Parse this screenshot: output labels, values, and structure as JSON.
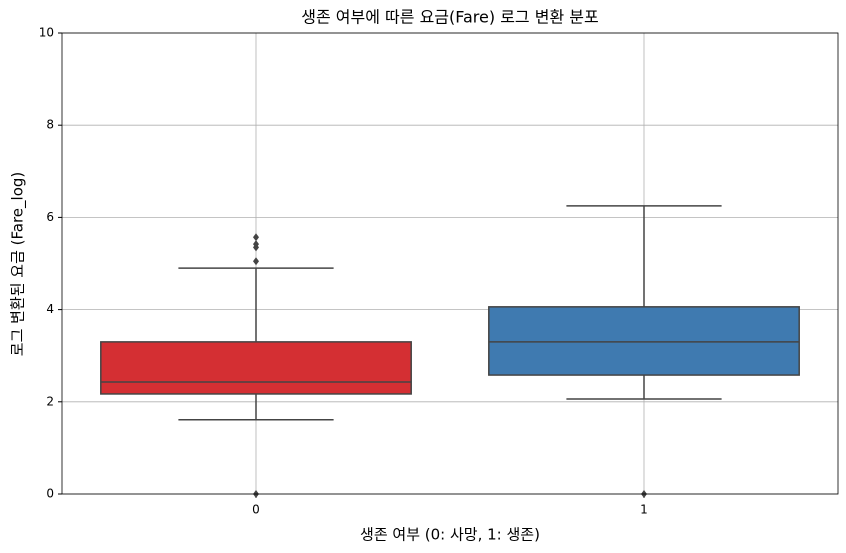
{
  "chart_data": {
    "type": "box",
    "title": "생존 여부에 따른 요금(Fare) 로그 변환 분포",
    "x_label": "생존 여부 (0: 사망, 1: 생존)",
    "y_label": "로그 변환된 요금 (Fare_log)",
    "categories": [
      "0",
      "1"
    ],
    "boxes": [
      {
        "color": "#d42f33",
        "low": 1.61,
        "q1": 2.17,
        "median": 2.43,
        "q3": 3.3,
        "high": 4.9,
        "outliers": [
          0,
          5.05,
          5.35,
          5.42,
          5.57
        ]
      },
      {
        "color": "#3f7ab0",
        "low": 2.06,
        "q1": 2.58,
        "median": 3.3,
        "q3": 4.06,
        "high": 6.25,
        "outliers": [
          0
        ]
      }
    ],
    "ylim": [
      0,
      10
    ],
    "yticks": [
      0,
      2,
      4,
      6,
      8,
      10
    ],
    "grid": true
  }
}
